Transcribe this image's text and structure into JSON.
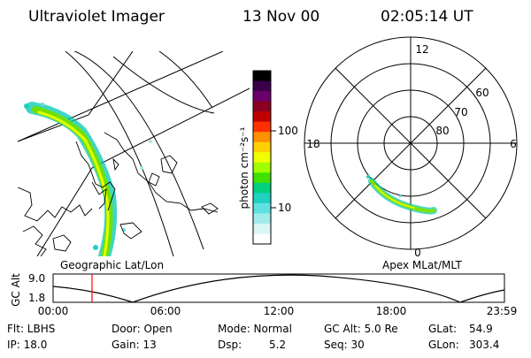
{
  "header": {
    "instrument": "Ultraviolet Imager",
    "date": "13 Nov 00",
    "time": "02:05:14 UT"
  },
  "color_scale": {
    "unit_label": "photon cm⁻²s⁻¹",
    "tick_labels": [
      "100",
      "10"
    ],
    "colors": [
      "#000000",
      "#3a004a",
      "#6a006a",
      "#8a0020",
      "#c00000",
      "#ff3000",
      "#ff9000",
      "#ffd000",
      "#f0ff00",
      "#a0ff00",
      "#40e000",
      "#00d080",
      "#20d0c0",
      "#60e0e0",
      "#a0ecec",
      "#d8f6f6",
      "#ffffff"
    ]
  },
  "map_panel": {
    "label": "Geographic Lat/Lon"
  },
  "polar_panel": {
    "label": "Apex MLat/MLT",
    "mlt_labels": {
      "top": "12",
      "left": "18",
      "right": "6",
      "bottom": "0"
    },
    "lat_labels": [
      "60",
      "70",
      "80"
    ]
  },
  "timeline": {
    "y_axis_label": "GC Alt",
    "y_ticks": [
      "9.0",
      "1.8"
    ],
    "x_ticks": [
      "00:00",
      "06:00",
      "12:00",
      "18:00",
      "23:59"
    ],
    "marker_color": "#ff0000"
  },
  "info": {
    "filter": "Flt: LBHS",
    "ip": "IP: 18.0",
    "door": "Door: Open",
    "gain": "Gain: 13",
    "mode": "Mode: Normal",
    "dsp_label": "Dsp:",
    "dsp_value": "5.2",
    "gc_alt": "GC Alt: 5.0 Re",
    "seq": "Seq: 30",
    "glat_label": "GLat:",
    "glat_value": "54.9",
    "glon_label": "GLon:",
    "glon_value": "303.4"
  }
}
